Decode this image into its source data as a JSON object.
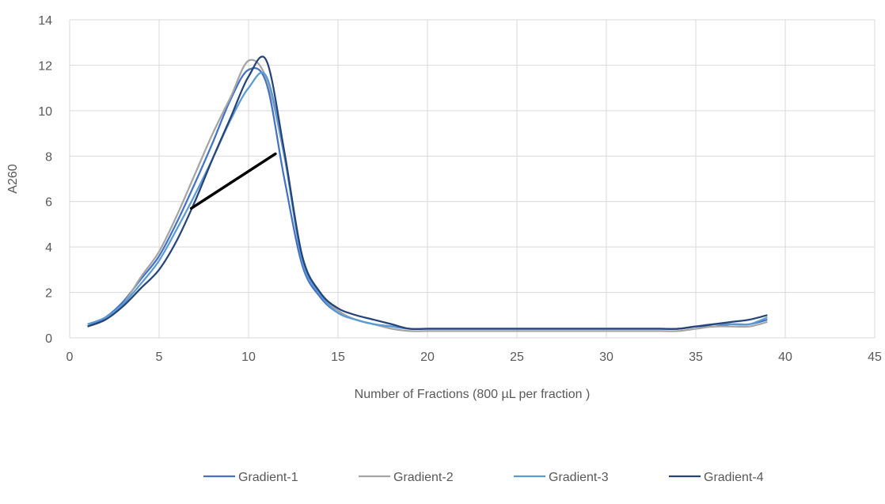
{
  "chart_data": {
    "type": "line",
    "title": "",
    "xlabel": "Number of Fractions (800 µL per fraction )",
    "ylabel": "A260",
    "xlim": [
      0,
      45
    ],
    "ylim": [
      0,
      14
    ],
    "xticks": [
      0,
      5,
      10,
      15,
      20,
      25,
      30,
      35,
      40,
      45
    ],
    "yticks": [
      0,
      2,
      4,
      6,
      8,
      10,
      12,
      14
    ],
    "grid": true,
    "legend_position": "bottom",
    "x": [
      1,
      2,
      3,
      4,
      5,
      6,
      7,
      8,
      9,
      10,
      11,
      12,
      13,
      14,
      15,
      16,
      17,
      18,
      19,
      20,
      21,
      22,
      23,
      24,
      25,
      26,
      27,
      28,
      29,
      30,
      31,
      32,
      33,
      34,
      35,
      36,
      37,
      38,
      39
    ],
    "series": [
      {
        "name": "Gradient-1",
        "color": "#4472C4",
        "values": [
          0.5,
          0.9,
          1.6,
          2.6,
          3.6,
          5.1,
          6.8,
          8.6,
          10.5,
          11.8,
          11.2,
          7.0,
          3.2,
          1.8,
          1.1,
          0.8,
          0.6,
          0.5,
          0.4,
          0.4,
          0.4,
          0.4,
          0.4,
          0.4,
          0.4,
          0.4,
          0.4,
          0.4,
          0.4,
          0.4,
          0.4,
          0.4,
          0.4,
          0.4,
          0.5,
          0.5,
          0.6,
          0.6,
          0.8
        ]
      },
      {
        "name": "Gradient-2",
        "color": "#A5A5A5",
        "values": [
          0.5,
          0.8,
          1.5,
          2.7,
          3.8,
          5.4,
          7.2,
          9.0,
          10.6,
          12.2,
          11.4,
          8.0,
          3.6,
          2.0,
          1.2,
          0.8,
          0.6,
          0.4,
          0.3,
          0.3,
          0.3,
          0.3,
          0.3,
          0.3,
          0.3,
          0.3,
          0.3,
          0.3,
          0.3,
          0.3,
          0.3,
          0.3,
          0.3,
          0.3,
          0.4,
          0.5,
          0.5,
          0.5,
          0.7
        ]
      },
      {
        "name": "Gradient-3",
        "color": "#5B9BD5",
        "values": [
          0.6,
          0.9,
          1.5,
          2.4,
          3.4,
          4.8,
          6.3,
          7.9,
          9.6,
          11.0,
          11.5,
          8.0,
          3.4,
          1.9,
          1.1,
          0.8,
          0.6,
          0.5,
          0.4,
          0.4,
          0.4,
          0.4,
          0.4,
          0.4,
          0.4,
          0.4,
          0.4,
          0.4,
          0.4,
          0.4,
          0.4,
          0.4,
          0.4,
          0.4,
          0.5,
          0.6,
          0.6,
          0.6,
          0.9
        ]
      },
      {
        "name": "Gradient-4",
        "color": "#264478",
        "values": [
          0.5,
          0.8,
          1.4,
          2.2,
          3.0,
          4.3,
          6.0,
          7.9,
          9.7,
          11.5,
          12.2,
          8.2,
          3.6,
          2.0,
          1.3,
          1.0,
          0.8,
          0.6,
          0.4,
          0.4,
          0.4,
          0.4,
          0.4,
          0.4,
          0.4,
          0.4,
          0.4,
          0.4,
          0.4,
          0.4,
          0.4,
          0.4,
          0.4,
          0.4,
          0.5,
          0.6,
          0.7,
          0.8,
          1.0
        ]
      }
    ],
    "annotation_line": {
      "color": "#000000",
      "from": {
        "x": 6.8,
        "y": 5.7
      },
      "to": {
        "x": 11.5,
        "y": 8.1
      }
    }
  }
}
